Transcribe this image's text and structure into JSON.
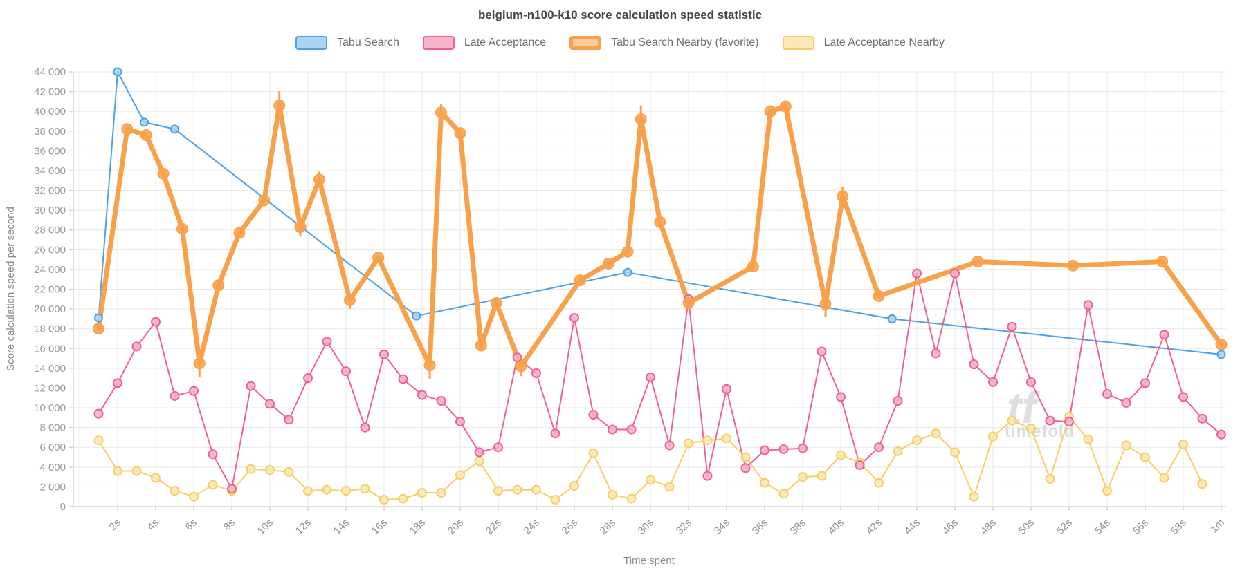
{
  "page": {
    "title": "belgium-n100-k10 score calculation speed statistic",
    "watermark_text": "timefold",
    "watermark_logo": "timefold-logo"
  },
  "chart_data": {
    "type": "line",
    "title": "belgium-n100-k10 score calculation speed statistic",
    "xlabel": "Time spent",
    "ylabel": "Score calculation speed per second",
    "grid": true,
    "legend_position": "top",
    "ylim": [
      0,
      44000
    ],
    "ytick_step": 2000,
    "yticks": [
      "0",
      "2 000",
      "4 000",
      "6 000",
      "8 000",
      "10 000",
      "12 000",
      "14 000",
      "16 000",
      "18 000",
      "20 000",
      "22 000",
      "24 000",
      "26 000",
      "28 000",
      "30 000",
      "32 000",
      "34 000",
      "36 000",
      "38 000",
      "40 000",
      "42 000",
      "44 000"
    ],
    "xlim_seconds": [
      0,
      61
    ],
    "xticks": [
      {
        "t": 2,
        "label": "2s"
      },
      {
        "t": 4,
        "label": "4s"
      },
      {
        "t": 6,
        "label": "6s"
      },
      {
        "t": 8,
        "label": "8s"
      },
      {
        "t": 10,
        "label": "10s"
      },
      {
        "t": 12,
        "label": "12s"
      },
      {
        "t": 14,
        "label": "14s"
      },
      {
        "t": 16,
        "label": "16s"
      },
      {
        "t": 18,
        "label": "18s"
      },
      {
        "t": 20,
        "label": "20s"
      },
      {
        "t": 22,
        "label": "22s"
      },
      {
        "t": 24,
        "label": "24s"
      },
      {
        "t": 26,
        "label": "26s"
      },
      {
        "t": 28,
        "label": "28s"
      },
      {
        "t": 30,
        "label": "30s"
      },
      {
        "t": 32,
        "label": "32s"
      },
      {
        "t": 34,
        "label": "34s"
      },
      {
        "t": 36,
        "label": "36s"
      },
      {
        "t": 38,
        "label": "38s"
      },
      {
        "t": 40,
        "label": "40s"
      },
      {
        "t": 42,
        "label": "42s"
      },
      {
        "t": 44,
        "label": "44s"
      },
      {
        "t": 46,
        "label": "46s"
      },
      {
        "t": 48,
        "label": "48s"
      },
      {
        "t": 50,
        "label": "50s"
      },
      {
        "t": 52,
        "label": "52s"
      },
      {
        "t": 54,
        "label": "54s"
      },
      {
        "t": 56,
        "label": "56s"
      },
      {
        "t": 58,
        "label": "58s"
      },
      {
        "t": 60,
        "label": "1m"
      }
    ],
    "series": [
      {
        "name": "Tabu Search",
        "color": "#4AA2E9",
        "marker_fill": "#A9D4F2",
        "line_width": 2,
        "marker_radius": 5.5,
        "favorite": false,
        "points": [
          [
            1,
            19100
          ],
          [
            2,
            44000
          ],
          [
            3.4,
            38900
          ],
          [
            5,
            38200
          ],
          [
            17.7,
            19300
          ],
          [
            28.8,
            23700
          ],
          [
            42.7,
            19000
          ],
          [
            60,
            15400
          ]
        ]
      },
      {
        "name": "Late Acceptance",
        "color": "#F0608F",
        "marker_fill": "#F7B3C8",
        "line_width": 2,
        "marker_radius": 6,
        "favorite": false,
        "points": [
          [
            1,
            9400
          ],
          [
            2,
            12500
          ],
          [
            3,
            16200
          ],
          [
            4,
            18700
          ],
          [
            5,
            11200
          ],
          [
            6,
            11700
          ],
          [
            7,
            5300
          ],
          [
            8,
            1800
          ],
          [
            9,
            12200
          ],
          [
            10,
            10400
          ],
          [
            11,
            8800
          ],
          [
            12,
            13000
          ],
          [
            13,
            16700
          ],
          [
            14,
            13700
          ],
          [
            15,
            8000
          ],
          [
            16,
            15400
          ],
          [
            17,
            12900
          ],
          [
            18,
            11300
          ],
          [
            19,
            10700
          ],
          [
            20,
            8600
          ],
          [
            21,
            5500
          ],
          [
            22,
            6000
          ],
          [
            23,
            15100
          ],
          [
            24,
            13500
          ],
          [
            25,
            7400
          ],
          [
            26,
            19100
          ],
          [
            27,
            9300
          ],
          [
            28,
            7800
          ],
          [
            29,
            7800
          ],
          [
            30,
            13100
          ],
          [
            31,
            6200
          ],
          [
            32,
            21000
          ],
          [
            33,
            3100
          ],
          [
            34,
            11900
          ],
          [
            35,
            3900
          ],
          [
            36,
            5700
          ],
          [
            37,
            5800
          ],
          [
            38,
            5900
          ],
          [
            39,
            15700
          ],
          [
            40,
            11100
          ],
          [
            41,
            4200
          ],
          [
            42,
            6000
          ],
          [
            43,
            10700
          ],
          [
            44,
            23600
          ],
          [
            45,
            15500
          ],
          [
            46,
            23600
          ],
          [
            47,
            14400
          ],
          [
            48,
            12600
          ],
          [
            49,
            18200
          ],
          [
            50,
            12600
          ],
          [
            51,
            8700
          ],
          [
            52,
            8600
          ],
          [
            53,
            20400
          ],
          [
            54,
            11400
          ],
          [
            55,
            10500
          ],
          [
            56,
            12500
          ],
          [
            57,
            17400
          ],
          [
            58,
            11100
          ],
          [
            59,
            8900
          ],
          [
            60,
            7300
          ]
        ]
      },
      {
        "name": "Tabu Search Nearby (favorite)",
        "color": "#F9A04A",
        "marker_fill": "#F9A04A",
        "line_width": 7,
        "marker_radius": 7.5,
        "favorite": true,
        "points": [
          [
            1,
            18000
          ],
          [
            2.5,
            38200
          ],
          [
            3.5,
            37600
          ],
          [
            4.4,
            33700
          ],
          [
            5.4,
            28100
          ],
          [
            6.3,
            14500
          ],
          [
            7.3,
            22400
          ],
          [
            8.4,
            27700
          ],
          [
            9.7,
            31000
          ],
          [
            10.5,
            40600
          ],
          [
            11.6,
            28300
          ],
          [
            12.6,
            33100
          ],
          [
            14.2,
            20900
          ],
          [
            15.7,
            25200
          ],
          [
            18.4,
            14300
          ],
          [
            19,
            39900
          ],
          [
            20,
            37800
          ],
          [
            21.1,
            16300
          ],
          [
            21.9,
            20600
          ],
          [
            23.2,
            14200
          ],
          [
            26.3,
            22900
          ],
          [
            27.8,
            24600
          ],
          [
            28.8,
            25800
          ],
          [
            29.5,
            39200
          ],
          [
            30.5,
            28800
          ],
          [
            32,
            20600
          ],
          [
            35.4,
            24300
          ],
          [
            36.3,
            40000
          ],
          [
            37.1,
            40500
          ],
          [
            39.2,
            20500
          ],
          [
            40.1,
            31400
          ],
          [
            42,
            21300
          ],
          [
            47.2,
            24800
          ],
          [
            52.2,
            24400
          ],
          [
            56.9,
            24800
          ],
          [
            60,
            16400
          ]
        ],
        "whiskers": [
          [
            6.3,
            -1300
          ],
          [
            10.5,
            1400
          ],
          [
            11.6,
            -900
          ],
          [
            12.6,
            700
          ],
          [
            14.2,
            -800
          ],
          [
            18.4,
            -1300
          ],
          [
            19,
            800
          ],
          [
            23.2,
            -900
          ],
          [
            29.5,
            1300
          ],
          [
            39.2,
            -1200
          ],
          [
            40.1,
            900
          ]
        ]
      },
      {
        "name": "Late Acceptance Nearby",
        "color": "#F6CE63",
        "marker_fill": "#FBE9B4",
        "line_width": 2,
        "marker_radius": 6,
        "favorite": false,
        "points": [
          [
            1,
            6700
          ],
          [
            2,
            3600
          ],
          [
            3,
            3600
          ],
          [
            4,
            2900
          ],
          [
            5,
            1600
          ],
          [
            6,
            1000
          ],
          [
            7,
            2200
          ],
          [
            8,
            1600
          ],
          [
            9,
            3800
          ],
          [
            10,
            3700
          ],
          [
            11,
            3500
          ],
          [
            12,
            1600
          ],
          [
            13,
            1700
          ],
          [
            14,
            1600
          ],
          [
            15,
            1800
          ],
          [
            16,
            700
          ],
          [
            17,
            800
          ],
          [
            18,
            1400
          ],
          [
            19,
            1400
          ],
          [
            20,
            3200
          ],
          [
            21,
            4600
          ],
          [
            22,
            1600
          ],
          [
            23,
            1700
          ],
          [
            24,
            1700
          ],
          [
            25,
            700
          ],
          [
            26,
            2100
          ],
          [
            27,
            5400
          ],
          [
            28,
            1200
          ],
          [
            29,
            800
          ],
          [
            30,
            2700
          ],
          [
            31,
            2000
          ],
          [
            32,
            6400
          ],
          [
            33,
            6700
          ],
          [
            34,
            6900
          ],
          [
            35,
            5000
          ],
          [
            36,
            2400
          ],
          [
            37,
            1300
          ],
          [
            38,
            3000
          ],
          [
            39,
            3100
          ],
          [
            40,
            5200
          ],
          [
            41,
            4500
          ],
          [
            42,
            2400
          ],
          [
            43,
            5600
          ],
          [
            44,
            6700
          ],
          [
            45,
            7400
          ],
          [
            46,
            5500
          ],
          [
            47,
            1000
          ],
          [
            48,
            7100
          ],
          [
            49,
            8700
          ],
          [
            50,
            7900
          ],
          [
            51,
            2800
          ],
          [
            52,
            9100
          ],
          [
            53,
            6800
          ],
          [
            54,
            1600
          ],
          [
            55,
            6200
          ],
          [
            56,
            5000
          ],
          [
            57,
            2900
          ],
          [
            58,
            6300
          ],
          [
            59,
            2300
          ]
        ]
      }
    ]
  }
}
